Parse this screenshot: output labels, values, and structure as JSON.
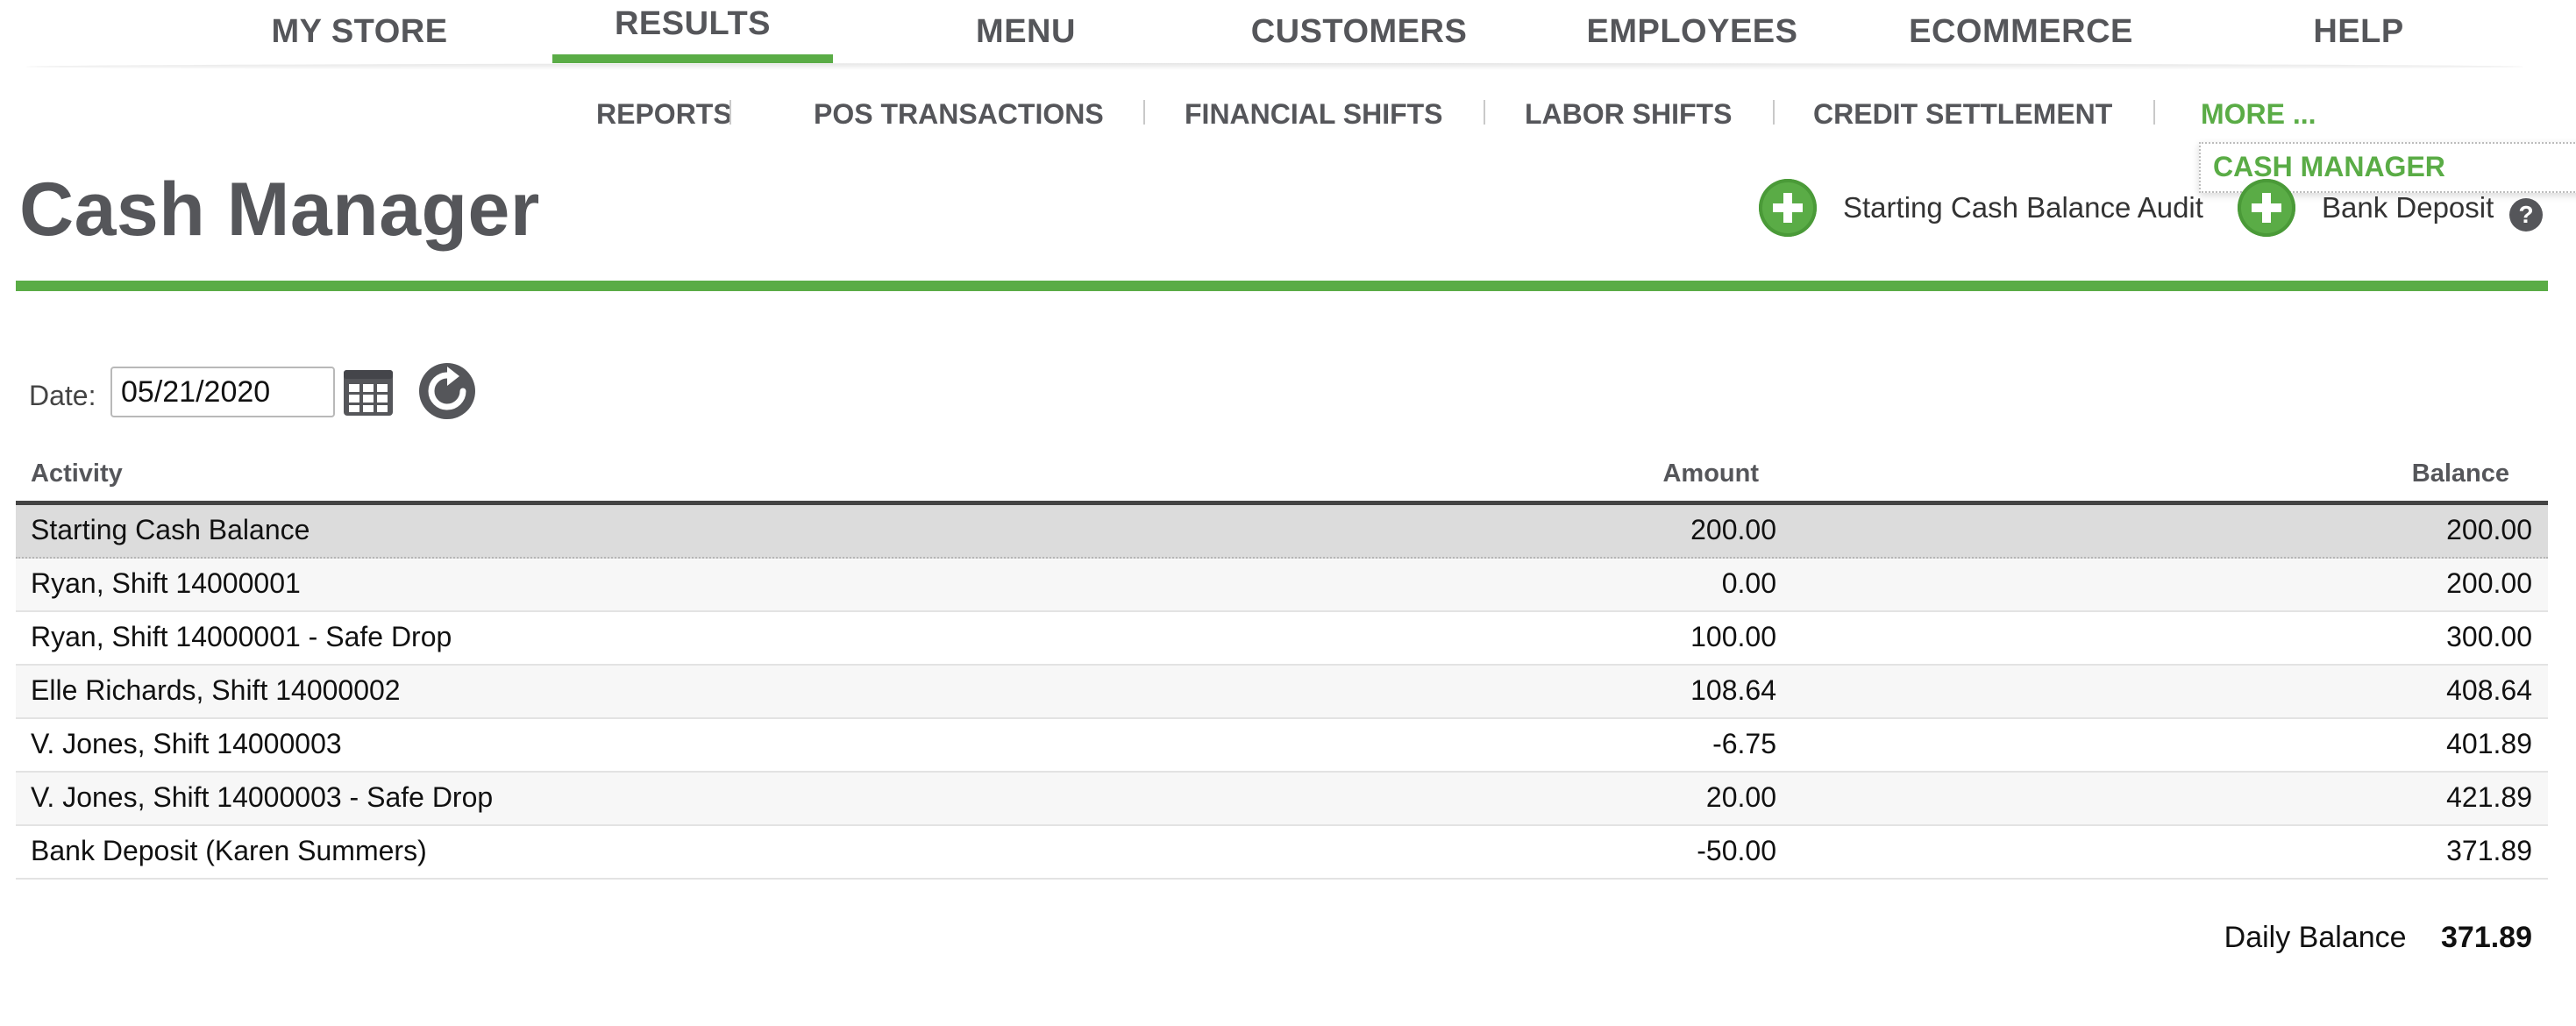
{
  "top_nav": {
    "items": [
      {
        "label": "MY STORE"
      },
      {
        "label": "RESULTS",
        "active": true
      },
      {
        "label": "MENU"
      },
      {
        "label": "CUSTOMERS"
      },
      {
        "label": "EMPLOYEES"
      },
      {
        "label": "ECOMMERCE"
      },
      {
        "label": "HELP"
      }
    ]
  },
  "sub_nav": {
    "items": [
      {
        "label": "REPORTS"
      },
      {
        "label": "POS TRANSACTIONS"
      },
      {
        "label": "FINANCIAL SHIFTS"
      },
      {
        "label": "LABOR SHIFTS"
      },
      {
        "label": "CREDIT SETTLEMENT"
      },
      {
        "label": "MORE ..."
      }
    ],
    "dropdown": {
      "label": "CASH MANAGER"
    }
  },
  "page": {
    "title": "Cash Manager",
    "actions": {
      "audit_label": "Starting Cash Balance Audit",
      "deposit_label": "Bank Deposit",
      "help": "?"
    }
  },
  "filter": {
    "date_label": "Date:",
    "date_value": "05/21/2020"
  },
  "table": {
    "columns": {
      "activity": "Activity",
      "amount": "Amount",
      "balance": "Balance"
    },
    "rows": [
      {
        "activity": "Starting Cash Balance",
        "amount": "200.00",
        "balance": "200.00"
      },
      {
        "activity": "Ryan, Shift 14000001",
        "amount": "0.00",
        "balance": "200.00"
      },
      {
        "activity": "Ryan, Shift 14000001 - Safe Drop",
        "amount": "100.00",
        "balance": "300.00"
      },
      {
        "activity": "Elle Richards, Shift 14000002",
        "amount": "108.64",
        "balance": "408.64"
      },
      {
        "activity": "V. Jones, Shift 14000003",
        "amount": "-6.75",
        "balance": "401.89"
      },
      {
        "activity": "V. Jones, Shift 14000003 - Safe Drop",
        "amount": "20.00",
        "balance": "421.89"
      },
      {
        "activity": "Bank Deposit (Karen Summers)",
        "amount": "-50.00",
        "balance": "371.89"
      }
    ]
  },
  "summary": {
    "label": "Daily Balance",
    "value": "371.89"
  },
  "colors": {
    "accent": "#5aac46",
    "nav_text": "#55565a"
  },
  "icons": [
    "plus-circle-icon",
    "help-icon",
    "calendar-icon",
    "refresh-icon"
  ]
}
